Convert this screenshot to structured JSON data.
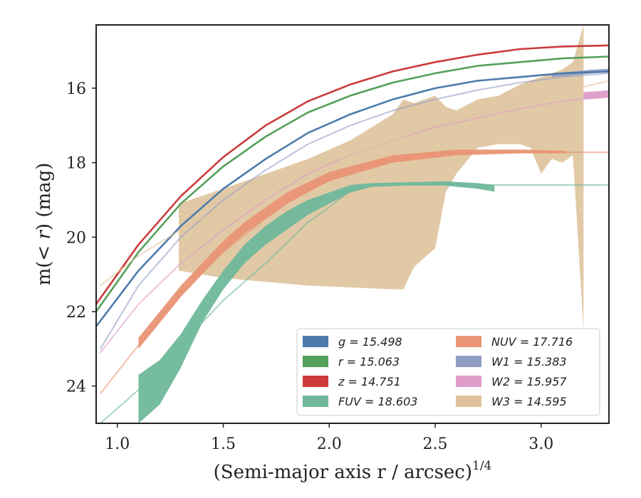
{
  "chart_data": {
    "type": "line",
    "title": "",
    "xlabel": "(Semi-major axis r / arcsec)",
    "xlabel_exponent": "1/4",
    "ylabel_prefix": "m(",
    "ylabel_math": "< r",
    "ylabel_suffix": ") (mag)",
    "xlim": [
      0.9,
      3.32
    ],
    "ylim": [
      25.0,
      14.3
    ],
    "y_inverted": true,
    "xticks": [
      1.0,
      1.5,
      2.0,
      2.5,
      3.0
    ],
    "xtick_labels": [
      "1.0",
      "1.5",
      "2.0",
      "2.5",
      "3.0"
    ],
    "yticks": [
      16,
      18,
      20,
      22,
      24
    ],
    "ytick_labels": [
      "16",
      "18",
      "20",
      "22",
      "24"
    ],
    "legend_position": "lower-right",
    "legend_columns": 2,
    "series": [
      {
        "name": "g = 15.498",
        "band": "g",
        "color": "#4c7bab",
        "x": [
          0.9,
          1.1,
          1.3,
          1.5,
          1.7,
          1.9,
          2.1,
          2.3,
          2.5,
          2.7,
          2.9,
          3.1,
          3.32
        ],
        "y": [
          22.4,
          20.9,
          19.7,
          18.7,
          17.9,
          17.2,
          16.7,
          16.3,
          16.0,
          15.8,
          15.7,
          15.6,
          15.55
        ],
        "band_x": [],
        "band_lower": [],
        "band_upper": []
      },
      {
        "name": "r = 15.063",
        "band": "r",
        "color": "#55a05a",
        "x": [
          0.9,
          1.1,
          1.3,
          1.5,
          1.7,
          1.9,
          2.1,
          2.3,
          2.5,
          2.7,
          2.9,
          3.1,
          3.32
        ],
        "y": [
          22.0,
          20.4,
          19.1,
          18.1,
          17.3,
          16.65,
          16.2,
          15.85,
          15.6,
          15.4,
          15.3,
          15.2,
          15.15
        ],
        "band_x": [],
        "band_lower": [],
        "band_upper": []
      },
      {
        "name": "z = 14.751",
        "band": "z",
        "color": "#cc3b3b",
        "x": [
          0.9,
          1.1,
          1.3,
          1.5,
          1.7,
          1.9,
          2.1,
          2.3,
          2.5,
          2.7,
          2.9,
          3.1,
          3.32
        ],
        "y": [
          21.8,
          20.2,
          18.9,
          17.85,
          17.0,
          16.35,
          15.9,
          15.55,
          15.3,
          15.1,
          14.95,
          14.88,
          14.85
        ],
        "band_x": [],
        "band_lower": [],
        "band_upper": []
      },
      {
        "name": "FUV = 18.603",
        "band": "FUV",
        "color": "#6fb89b",
        "x": [
          0.92,
          1.1,
          1.3,
          1.5,
          1.7,
          1.9,
          2.0,
          2.1,
          2.2,
          2.4,
          2.6,
          2.8,
          3.0,
          3.32
        ],
        "y": [
          25.0,
          24.1,
          22.9,
          21.7,
          20.7,
          19.6,
          19.2,
          18.75,
          18.62,
          18.6,
          18.6,
          18.6,
          18.6,
          18.6
        ],
        "band_x": [
          1.1,
          1.2,
          1.3,
          1.4,
          1.5,
          1.6,
          1.7,
          1.8,
          1.9,
          2.0,
          2.1,
          2.2,
          2.4,
          2.55,
          2.7,
          2.78
        ],
        "band_lower": [
          25.0,
          24.5,
          23.5,
          22.3,
          21.4,
          20.7,
          20.2,
          19.8,
          19.4,
          19.1,
          18.8,
          18.65,
          18.6,
          18.62,
          18.7,
          18.78
        ],
        "band_upper": [
          23.7,
          23.3,
          22.6,
          21.7,
          20.9,
          20.2,
          19.7,
          19.3,
          19.0,
          18.8,
          18.6,
          18.55,
          18.52,
          18.5,
          18.55,
          18.6
        ]
      },
      {
        "name": "NUV = 17.716",
        "band": "NUV",
        "color": "#e99575",
        "x": [
          0.92,
          1.1,
          1.3,
          1.5,
          1.7,
          1.9,
          2.1,
          2.3,
          2.5,
          2.7,
          2.9,
          3.1,
          3.32
        ],
        "y": [
          24.2,
          22.9,
          21.5,
          20.4,
          19.5,
          18.7,
          18.2,
          17.9,
          17.75,
          17.72,
          17.72,
          17.72,
          17.72
        ],
        "band_x": [
          1.1,
          1.2,
          1.3,
          1.4,
          1.5,
          1.6,
          1.8,
          2.0,
          2.3,
          2.6,
          2.9,
          3.12
        ],
        "band_lower": [
          23.0,
          22.3,
          21.6,
          21.0,
          20.4,
          19.9,
          19.1,
          18.5,
          18.0,
          17.8,
          17.75,
          17.75
        ],
        "band_upper": [
          22.7,
          22.0,
          21.3,
          20.7,
          20.1,
          19.6,
          18.8,
          18.25,
          17.8,
          17.65,
          17.65,
          17.68
        ]
      },
      {
        "name": "W1 = 15.383",
        "band": "W1",
        "color": "#8f9dc4",
        "x": [
          0.92,
          1.1,
          1.3,
          1.5,
          1.7,
          1.9,
          2.1,
          2.3,
          2.5,
          2.7,
          2.9,
          3.1,
          3.32
        ],
        "y": [
          23.0,
          21.3,
          20.0,
          19.0,
          18.2,
          17.5,
          17.0,
          16.6,
          16.3,
          16.05,
          15.85,
          15.7,
          15.6
        ],
        "band_x": [
          3.05,
          3.15,
          3.25,
          3.32
        ],
        "band_lower": [
          15.7,
          15.65,
          15.6,
          15.58
        ],
        "band_upper": [
          15.6,
          15.55,
          15.5,
          15.48
        ]
      },
      {
        "name": "W2 = 15.957",
        "band": "W2",
        "color": "#df9cc8",
        "x": [
          0.92,
          1.1,
          1.3,
          1.5,
          1.7,
          1.9,
          2.1,
          2.3,
          2.5,
          2.7,
          2.9,
          3.1,
          3.32
        ],
        "y": [
          23.1,
          21.8,
          20.7,
          19.8,
          19.0,
          18.3,
          17.8,
          17.4,
          17.05,
          16.8,
          16.55,
          16.35,
          16.2
        ],
        "band_x": [
          3.2,
          3.27,
          3.32
        ],
        "band_lower": [
          16.3,
          16.28,
          16.25
        ],
        "band_upper": [
          16.1,
          16.08,
          16.05
        ]
      },
      {
        "name": "W3 = 14.595",
        "band": "W3",
        "color": "#dfc39c",
        "x": [
          0.92,
          1.1,
          1.3,
          1.5,
          1.7,
          1.9,
          2.1,
          2.3,
          2.5,
          2.7,
          2.9,
          3.1,
          3.32
        ],
        "y": [
          21.3,
          20.5,
          19.8,
          19.2,
          18.7,
          18.2,
          17.8,
          17.4,
          17.0,
          16.7,
          16.4,
          16.1,
          15.8
        ],
        "band_x": [
          1.29,
          1.5,
          1.7,
          1.9,
          2.1,
          2.3,
          2.35,
          2.4,
          2.5,
          2.55,
          2.6,
          2.7,
          2.8,
          2.9,
          2.95,
          3.0,
          3.05,
          3.1,
          3.15,
          3.2
        ],
        "band_lower": [
          20.9,
          21.1,
          21.2,
          21.3,
          21.35,
          21.4,
          21.4,
          20.8,
          20.3,
          18.8,
          18.3,
          17.6,
          17.5,
          17.5,
          17.6,
          18.3,
          17.9,
          18.0,
          17.8,
          22.5
        ],
        "band_upper": [
          19.1,
          18.7,
          18.3,
          17.9,
          17.4,
          16.7,
          16.3,
          16.4,
          16.2,
          16.5,
          16.6,
          16.3,
          16.2,
          15.9,
          15.8,
          15.7,
          15.6,
          15.5,
          15.3,
          14.3
        ]
      }
    ]
  }
}
